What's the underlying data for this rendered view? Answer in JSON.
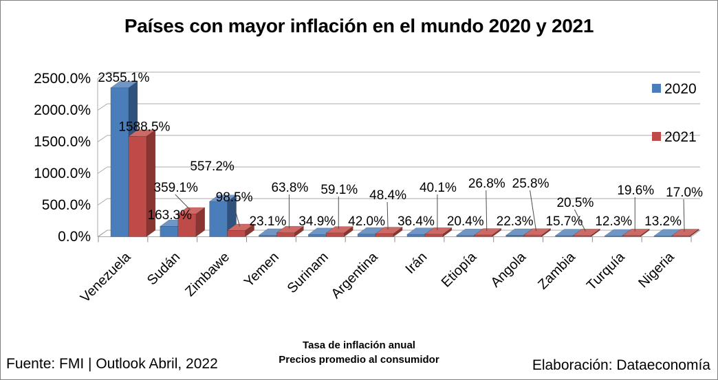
{
  "title": "Países con mayor inflación en el mundo 2020 y 2021",
  "chart_data": {
    "type": "bar",
    "style": "3d-clustered-column",
    "title": "Países con mayor inflación en el mundo 2020 y 2021",
    "categories": [
      "Venezuela",
      "Sudán",
      "Zimbawe",
      "Yemen",
      "Surinam",
      "Argentina",
      "Irán",
      "Etiopía",
      "Angola",
      "Zambia",
      "Turquía",
      "Nigeria"
    ],
    "series": [
      {
        "name": "2020",
        "color": "#4A7EBA",
        "values": [
          2355.1,
          163.3,
          557.2,
          23.1,
          34.9,
          42.0,
          36.4,
          20.4,
          22.3,
          15.7,
          12.3,
          13.2
        ]
      },
      {
        "name": "2021",
        "color": "#BE4B48",
        "values": [
          1588.5,
          359.1,
          98.5,
          63.8,
          59.1,
          48.4,
          40.1,
          26.8,
          25.8,
          20.5,
          19.6,
          17.0
        ]
      }
    ],
    "value_suffix": "%",
    "value_decimals": 1,
    "ylim": [
      0,
      2500
    ],
    "ytick_step": 500,
    "ytick_labels": [
      "0.0%",
      "500.0%",
      "1000.0%",
      "1500.0%",
      "2000.0%",
      "2500.0%"
    ],
    "grid": true,
    "legend_position": "right",
    "data_labels": true
  },
  "footer": {
    "source": "Fuente: FMI | Outlook Abril, 2022",
    "note_line1": "Tasa de inflación anual",
    "note_line2": "Precios promedio al consumidor",
    "credit": "Elaboración: Dataeconomía"
  }
}
